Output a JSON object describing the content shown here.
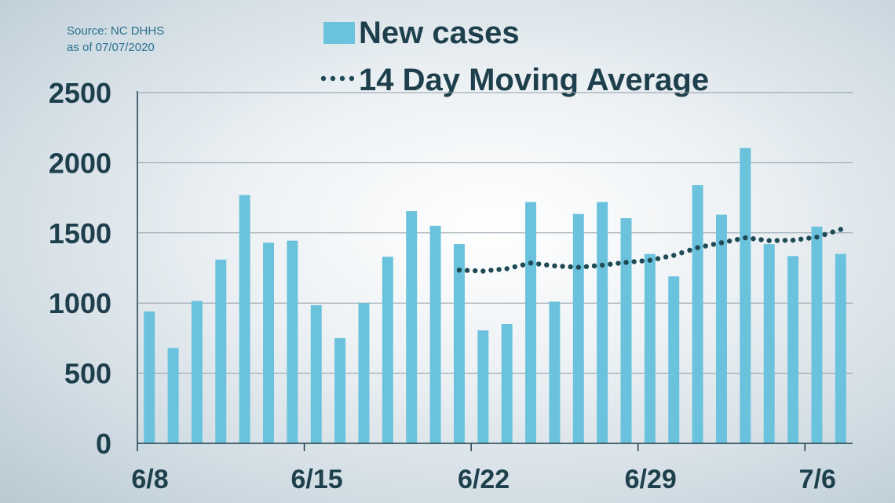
{
  "source": {
    "line1": "Source: NC DHHS",
    "line2": "as of 07/07/2020"
  },
  "chart_data": {
    "type": "bar",
    "title": "",
    "xlabel": "",
    "ylabel": "",
    "ylim": [
      0,
      2500
    ],
    "yticks": [
      0,
      500,
      1000,
      1500,
      2000,
      2500
    ],
    "ytick_labels": [
      "0",
      "500",
      "1000",
      "1500",
      "2000",
      "2500"
    ],
    "xtick_labels": [
      {
        "label": "6/8",
        "index": 0
      },
      {
        "label": "6/15",
        "index": 7
      },
      {
        "label": "6/22",
        "index": 14
      },
      {
        "label": "6/29",
        "index": 21
      },
      {
        "label": "7/6",
        "index": 28
      }
    ],
    "grid": true,
    "legend_position": "top",
    "categories": [
      "6/8",
      "6/9",
      "6/10",
      "6/11",
      "6/12",
      "6/13",
      "6/14",
      "6/15",
      "6/16",
      "6/17",
      "6/18",
      "6/19",
      "6/20",
      "6/21",
      "6/22",
      "6/23",
      "6/24",
      "6/25",
      "6/26",
      "6/27",
      "6/28",
      "6/29",
      "6/30",
      "7/1",
      "7/2",
      "7/3",
      "7/4",
      "7/5",
      "7/6",
      "7/7"
    ],
    "series": [
      {
        "name": "New cases",
        "type": "bar",
        "color": "#6bc2dc",
        "values": [
          940,
          680,
          1015,
          1310,
          1770,
          1430,
          1445,
          985,
          750,
          1000,
          1330,
          1655,
          1550,
          1420,
          805,
          850,
          1720,
          1010,
          1635,
          1720,
          1605,
          1350,
          1190,
          1840,
          1630,
          2105,
          1420,
          1335,
          1545,
          1350
        ]
      },
      {
        "name": "14 Day Moving Average",
        "type": "line",
        "style": "dotted",
        "color": "#1e4a55",
        "values": [
          null,
          null,
          null,
          null,
          null,
          null,
          null,
          null,
          null,
          null,
          null,
          null,
          null,
          1235,
          1228,
          1245,
          1285,
          1265,
          1255,
          1270,
          1290,
          1305,
          1340,
          1395,
          1430,
          1465,
          1445,
          1448,
          1470,
          1525
        ]
      }
    ]
  }
}
